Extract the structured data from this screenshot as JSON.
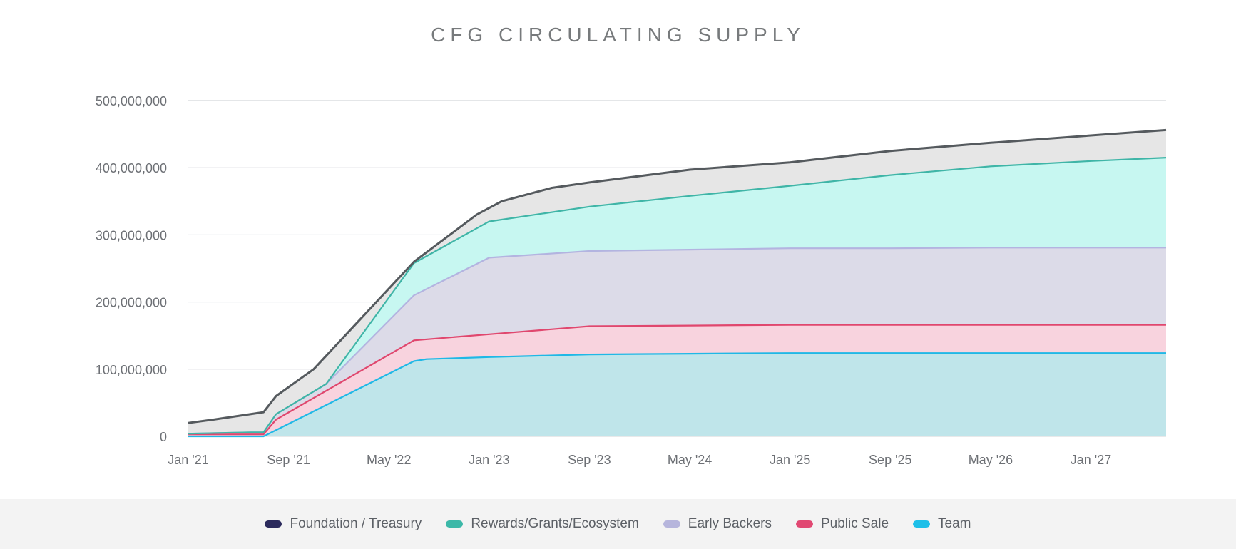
{
  "chart_data": {
    "type": "area",
    "stacked": true,
    "title": "CFG CIRCULATING SUPPLY",
    "xlabel": "",
    "ylabel": "",
    "ylim": [
      0,
      500000000
    ],
    "y_ticks": [
      0,
      100000000,
      200000000,
      300000000,
      400000000,
      500000000
    ],
    "y_tick_labels": [
      "0",
      "100,000,000",
      "200,000,000",
      "300,000,000",
      "400,000,000",
      "500,000,000"
    ],
    "x_ticks": [
      "2021-01",
      "2021-09",
      "2022-05",
      "2023-01",
      "2023-09",
      "2024-05",
      "2025-01",
      "2025-09",
      "2026-05",
      "2027-01"
    ],
    "x_tick_labels": [
      "Jan '21",
      "Sep '21",
      "May '22",
      "Jan '23",
      "Sep '23",
      "May '24",
      "Jan '25",
      "Sep '25",
      "May '26",
      "Jan '27"
    ],
    "xlim": [
      "2021-01",
      "2027-07"
    ],
    "grid": true,
    "legend_position": "bottom",
    "series": [
      {
        "name": "Team",
        "color": "#1fb8e6",
        "fill": "#bfe5ea",
        "points": [
          [
            "2021-01",
            0
          ],
          [
            "2021-06",
            0
          ],
          [
            "2021-07",
            0
          ],
          [
            "2022-07",
            112000000
          ],
          [
            "2022-08",
            115000000
          ],
          [
            "2023-01",
            118000000
          ],
          [
            "2023-09",
            122000000
          ],
          [
            "2024-05",
            123000000
          ],
          [
            "2025-01",
            124000000
          ],
          [
            "2025-09",
            124000000
          ],
          [
            "2026-05",
            124000000
          ],
          [
            "2027-01",
            124000000
          ],
          [
            "2027-07",
            124000000
          ]
        ]
      },
      {
        "name": "Public Sale",
        "color": "#e0476e",
        "fill": "#f8d3de",
        "points": [
          [
            "2021-01",
            3000000
          ],
          [
            "2021-06",
            3000000
          ],
          [
            "2021-07",
            3000000
          ],
          [
            "2021-08",
            25000000
          ],
          [
            "2022-07",
            143000000
          ],
          [
            "2023-01",
            152000000
          ],
          [
            "2023-09",
            164000000
          ],
          [
            "2024-05",
            165000000
          ],
          [
            "2025-01",
            166000000
          ],
          [
            "2025-09",
            166000000
          ],
          [
            "2026-05",
            166000000
          ],
          [
            "2027-01",
            166000000
          ],
          [
            "2027-07",
            166000000
          ]
        ]
      },
      {
        "name": "Early Backers",
        "color": "#b3b4e0",
        "fill": "#dcdbe8",
        "points": [
          [
            "2021-01",
            4000000
          ],
          [
            "2021-06",
            6000000
          ],
          [
            "2021-07",
            6000000
          ],
          [
            "2021-08",
            33000000
          ],
          [
            "2021-12",
            78000000
          ],
          [
            "2022-07",
            210000000
          ],
          [
            "2023-01",
            266000000
          ],
          [
            "2023-09",
            276000000
          ],
          [
            "2024-05",
            278000000
          ],
          [
            "2025-01",
            280000000
          ],
          [
            "2025-09",
            280000000
          ],
          [
            "2026-05",
            281000000
          ],
          [
            "2027-01",
            281000000
          ],
          [
            "2027-07",
            281000000
          ]
        ]
      },
      {
        "name": "Rewards/Grants/Ecosystem",
        "color": "#3fb5a7",
        "fill": "#c7f7f1",
        "points": [
          [
            "2021-01",
            4000000
          ],
          [
            "2021-06",
            6000000
          ],
          [
            "2021-07",
            6000000
          ],
          [
            "2021-08",
            33000000
          ],
          [
            "2021-12",
            78000000
          ],
          [
            "2022-07",
            258000000
          ],
          [
            "2023-01",
            320000000
          ],
          [
            "2023-09",
            342000000
          ],
          [
            "2024-05",
            358000000
          ],
          [
            "2025-01",
            373000000
          ],
          [
            "2025-09",
            389000000
          ],
          [
            "2026-05",
            402000000
          ],
          [
            "2027-01",
            410000000
          ],
          [
            "2027-07",
            415000000
          ]
        ]
      },
      {
        "name": "Foundation / Treasury",
        "color": "#555a5e",
        "fill": "#e6e6e6",
        "points": [
          [
            "2021-01",
            20000000
          ],
          [
            "2021-03",
            25000000
          ],
          [
            "2021-07",
            36000000
          ],
          [
            "2021-08",
            60000000
          ],
          [
            "2021-11",
            100000000
          ],
          [
            "2022-07",
            260000000
          ],
          [
            "2022-12",
            330000000
          ],
          [
            "2023-02",
            350000000
          ],
          [
            "2023-06",
            370000000
          ],
          [
            "2023-09",
            378000000
          ],
          [
            "2024-05",
            397000000
          ],
          [
            "2025-01",
            408000000
          ],
          [
            "2025-09",
            425000000
          ],
          [
            "2026-05",
            437000000
          ],
          [
            "2027-01",
            448000000
          ],
          [
            "2027-07",
            456000000
          ]
        ]
      }
    ]
  },
  "legend": [
    {
      "label": "Foundation / Treasury",
      "color": "#2b2a5c"
    },
    {
      "label": "Rewards/Grants/Ecosystem",
      "color": "#3cb8a8"
    },
    {
      "label": "Early Backers",
      "color": "#b6b5dc"
    },
    {
      "label": "Public Sale",
      "color": "#e14872"
    },
    {
      "label": "Team",
      "color": "#1dbfe8"
    }
  ]
}
